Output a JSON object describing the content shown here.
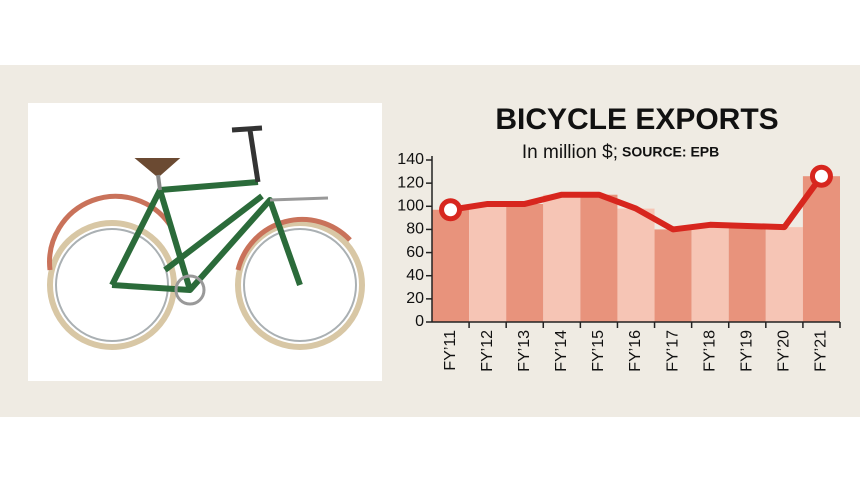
{
  "chart_data": {
    "type": "line-bar",
    "title": "BICYCLE EXPORTS",
    "subtitle": "In million $;",
    "source": "SOURCE: EPB",
    "categories": [
      "FY’11",
      "FY’12",
      "FY’13",
      "FY’14",
      "FY’15",
      "FY’16",
      "FY’17",
      "FY’18",
      "FY’19",
      "FY’20",
      "FY’21"
    ],
    "values": [
      97,
      102,
      102,
      110,
      110,
      98,
      80,
      84,
      83,
      82,
      126
    ],
    "color": "#d7261e",
    "bar_colors": [
      "#e8937c",
      "#f6c5b5"
    ],
    "ylim": [
      0,
      140
    ],
    "yticks": [
      0,
      20,
      40,
      60,
      80,
      100,
      120,
      140
    ]
  }
}
